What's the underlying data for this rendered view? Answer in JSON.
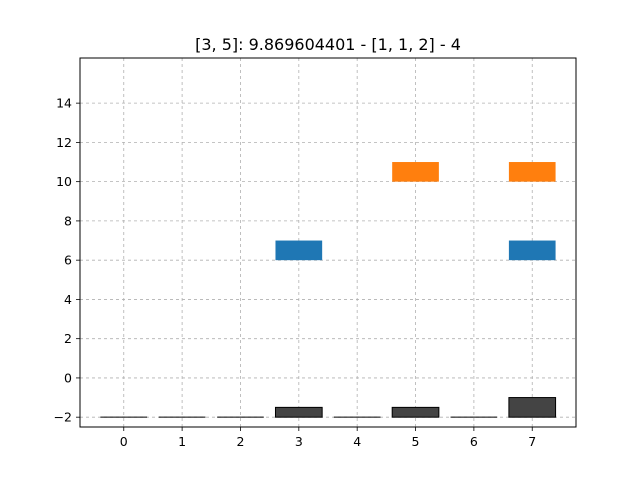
{
  "chart_data": {
    "type": "bar",
    "title": "[3, 5]: 9.869604401 - [1, 1, 2] - 4",
    "xlabel": "",
    "ylabel": "",
    "x_ticks": [
      "0",
      "1",
      "2",
      "3",
      "4",
      "5",
      "6",
      "7"
    ],
    "y_ticks": [
      "−2",
      "0",
      "2",
      "4",
      "6",
      "8",
      "10",
      "12",
      "14"
    ],
    "xlim": [
      -0.75,
      7.75
    ],
    "ylim": [
      -2.5,
      16.3
    ],
    "grid": true,
    "floating_bars": [
      {
        "series": "blue",
        "x": 3,
        "bottom": 6,
        "top": 7
      },
      {
        "series": "blue",
        "x": 7,
        "bottom": 6,
        "top": 7
      },
      {
        "series": "orange",
        "x": 5,
        "bottom": 10,
        "top": 11
      },
      {
        "series": "orange",
        "x": 7,
        "bottom": 10,
        "top": 11
      }
    ],
    "base_bars": [
      {
        "x": 0,
        "bottom": -2,
        "top": -2
      },
      {
        "x": 1,
        "bottom": -2,
        "top": -2
      },
      {
        "x": 2,
        "bottom": -2,
        "top": -2
      },
      {
        "x": 3,
        "bottom": -2,
        "top": -1.5
      },
      {
        "x": 4,
        "bottom": -2,
        "top": -2
      },
      {
        "x": 5,
        "bottom": -2,
        "top": -1.5
      },
      {
        "x": 6,
        "bottom": -2,
        "top": -2
      },
      {
        "x": 7,
        "bottom": -2,
        "top": -1
      }
    ],
    "bar_width": 0.8,
    "colors": {
      "blue": "#1f77b4",
      "orange": "#ff7f0e",
      "base": "#444444",
      "grid": "#b0b0b0"
    }
  }
}
